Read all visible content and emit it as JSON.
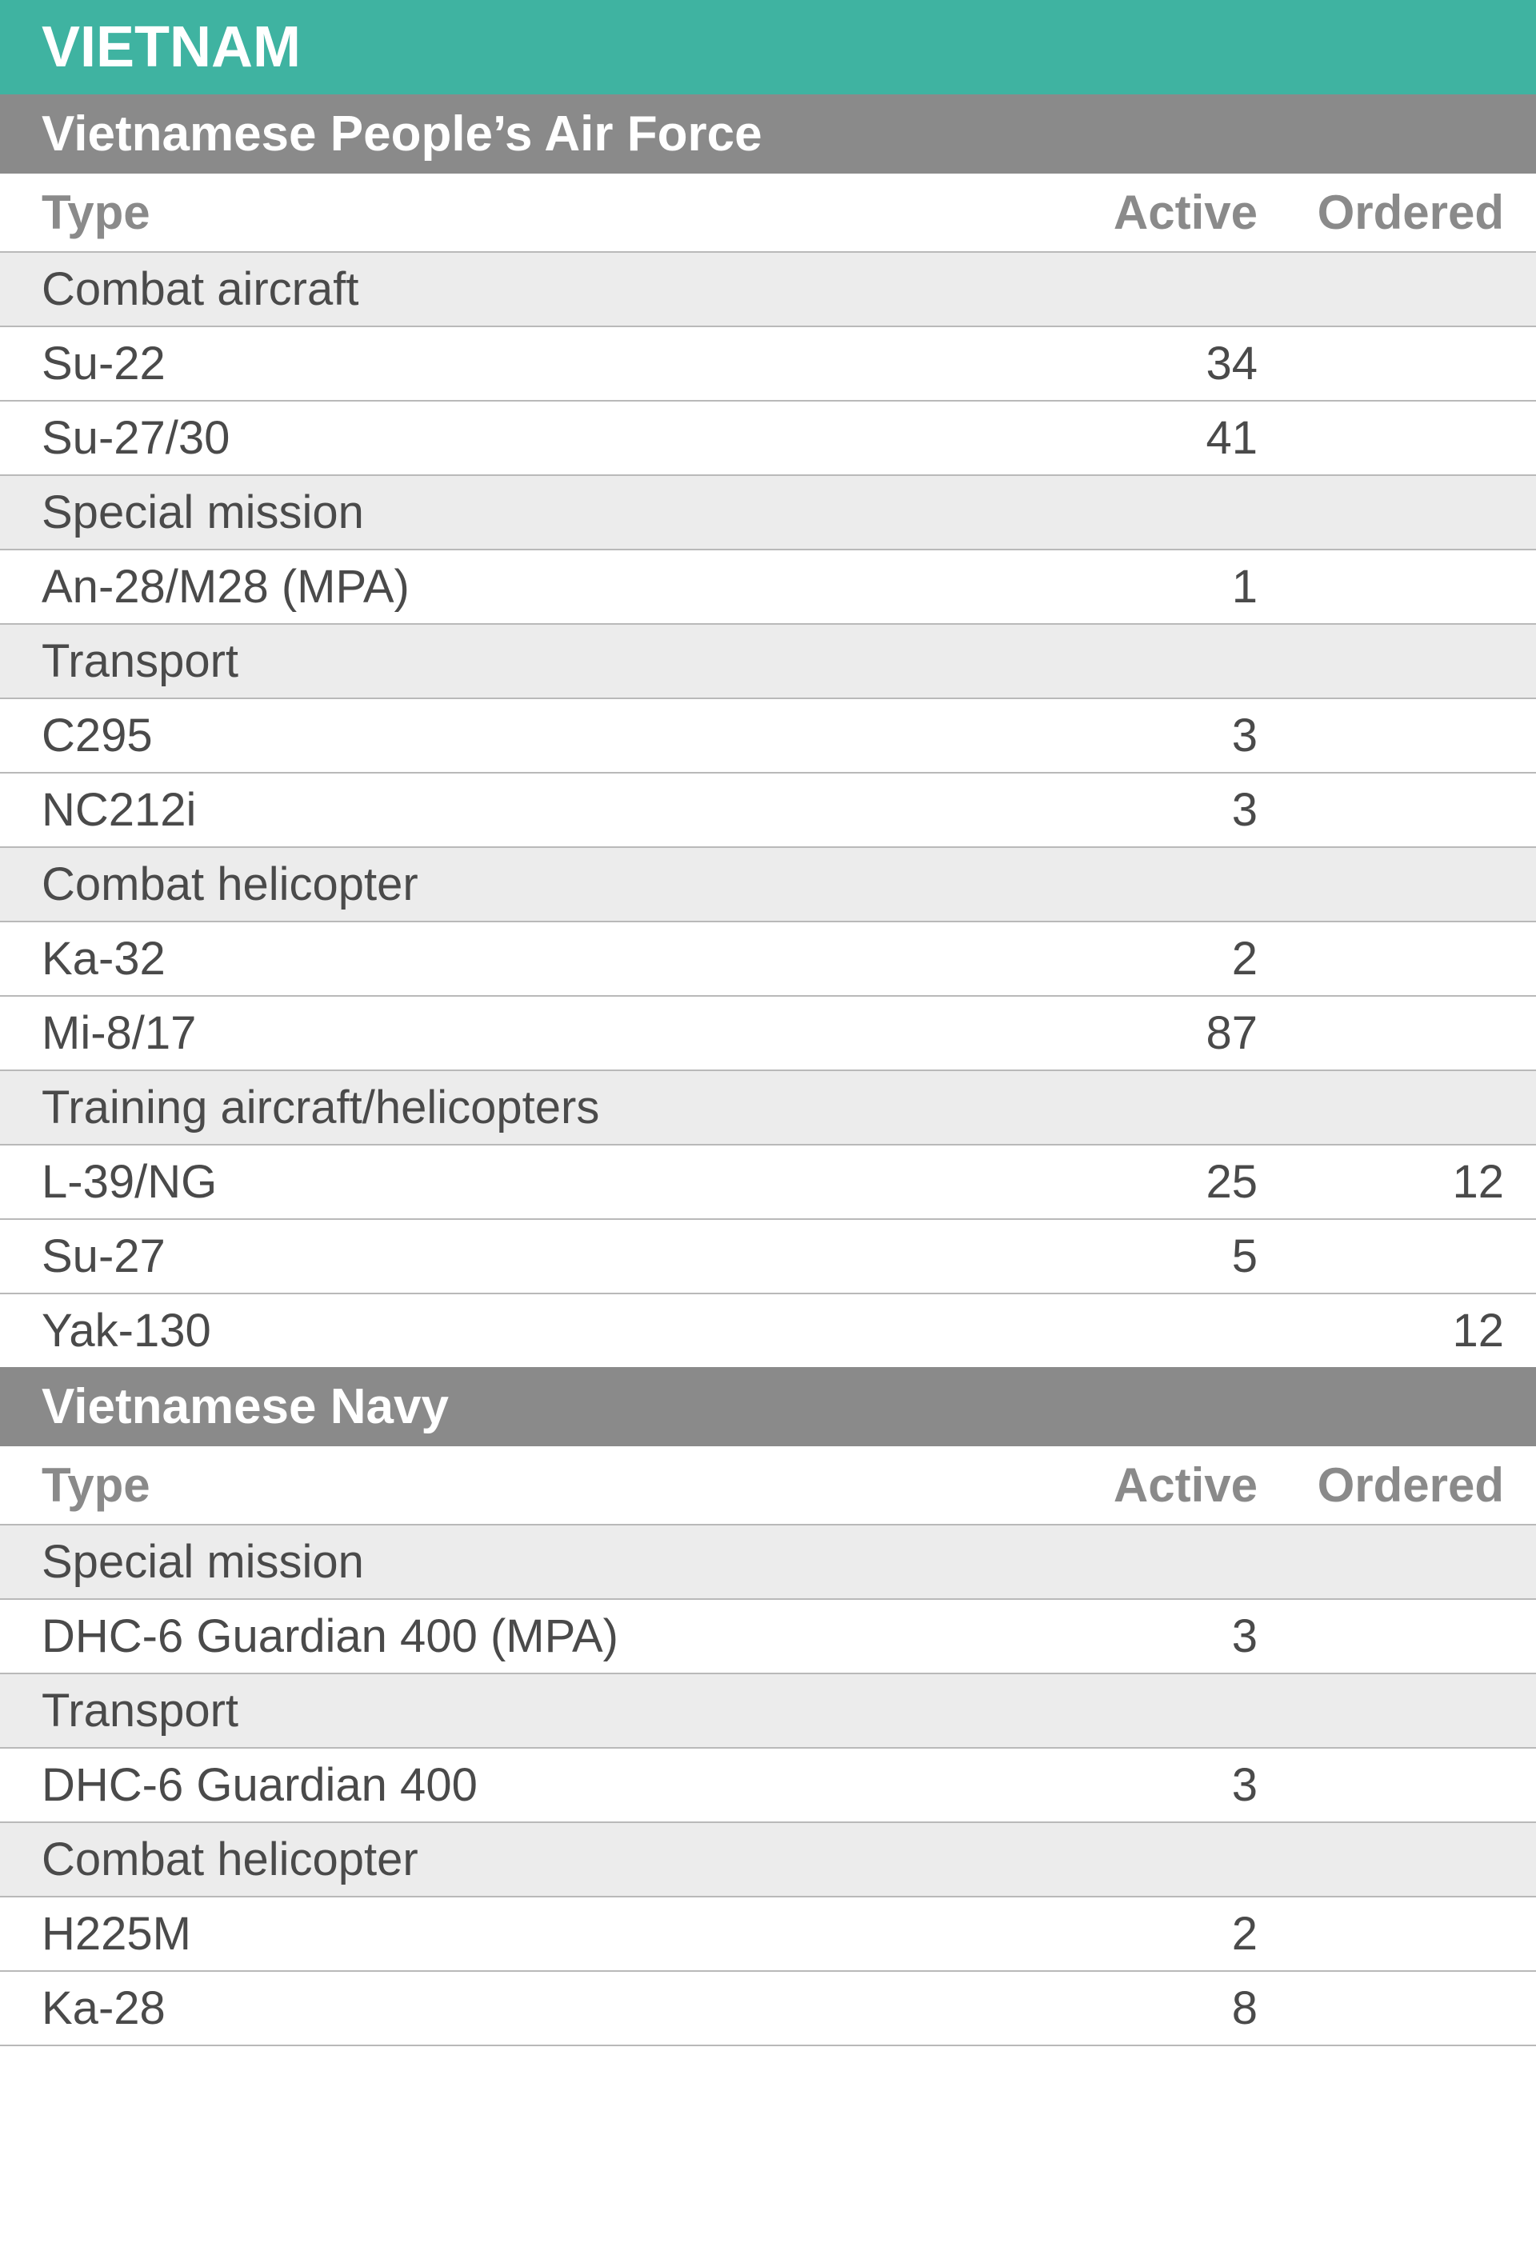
{
  "colors": {
    "country_bg": "#3fb3a1",
    "branch_bg": "#8a8a8a",
    "category_bg": "#ececec",
    "header_text": "#ffffff",
    "col_header_text": "#8a8a8a",
    "body_text": "#4a4a4a",
    "row_border": "#b9b9b9",
    "page_bg": "#ffffff"
  },
  "fontsizes_pt": {
    "country": 54,
    "branch": 47,
    "col_header": 45,
    "body": 44
  },
  "columns": {
    "type": "Type",
    "active": "Active",
    "ordered": "Ordered"
  },
  "country": "VIETNAM",
  "branches": [
    {
      "name": "Vietnamese People’s Air Force",
      "groups": [
        {
          "category": "Combat aircraft",
          "rows": [
            {
              "type": "Su-22",
              "active": "34",
              "ordered": ""
            },
            {
              "type": "Su-27/30",
              "active": "41",
              "ordered": ""
            }
          ]
        },
        {
          "category": "Special mission",
          "rows": [
            {
              "type": "An-28/M28 (MPA)",
              "active": "1",
              "ordered": ""
            }
          ]
        },
        {
          "category": "Transport",
          "rows": [
            {
              "type": "C295",
              "active": "3",
              "ordered": ""
            },
            {
              "type": "NC212i",
              "active": "3",
              "ordered": ""
            }
          ]
        },
        {
          "category": "Combat helicopter",
          "rows": [
            {
              "type": "Ka-32",
              "active": "2",
              "ordered": ""
            },
            {
              "type": "Mi-8/17",
              "active": "87",
              "ordered": ""
            }
          ]
        },
        {
          "category": "Training aircraft/helicopters",
          "rows": [
            {
              "type": "L-39/NG",
              "active": "25",
              "ordered": "12"
            },
            {
              "type": "Su-27",
              "active": "5",
              "ordered": ""
            },
            {
              "type": "Yak-130",
              "active": "",
              "ordered": "12"
            }
          ]
        }
      ]
    },
    {
      "name": "Vietnamese Navy",
      "groups": [
        {
          "category": "Special mission",
          "rows": [
            {
              "type": "DHC-6 Guardian 400 (MPA)",
              "active": "3",
              "ordered": ""
            }
          ]
        },
        {
          "category": "Transport",
          "rows": [
            {
              "type": "DHC-6 Guardian 400",
              "active": "3",
              "ordered": ""
            }
          ]
        },
        {
          "category": "Combat helicopter",
          "rows": [
            {
              "type": "H225M",
              "active": "2",
              "ordered": ""
            },
            {
              "type": "Ka-28",
              "active": "8",
              "ordered": ""
            }
          ]
        }
      ]
    }
  ]
}
